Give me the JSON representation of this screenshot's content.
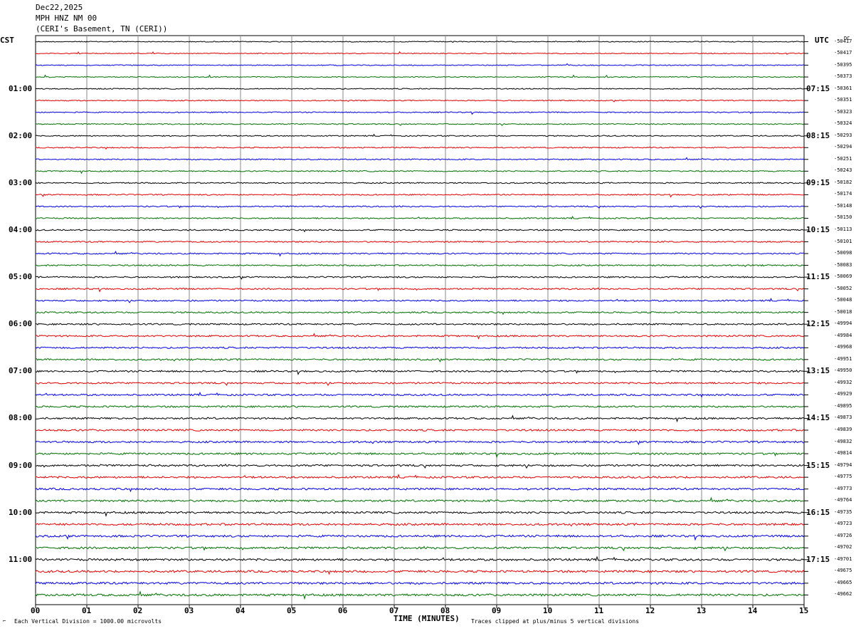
{
  "header": {
    "date": "Dec22,2025",
    "station": "MPH HNZ NM 00",
    "location": "(CERI's Basement, TN (CERI))"
  },
  "left_axis_label": "CST",
  "right_axis_label": "UTC",
  "dc_label": "DC",
  "chart_data": {
    "type": "seismogram",
    "xlabel": "TIME (MINUTES)",
    "x_ticks": [
      "00",
      "01",
      "02",
      "03",
      "04",
      "05",
      "06",
      "07",
      "08",
      "09",
      "10",
      "11",
      "12",
      "13",
      "14",
      "15"
    ],
    "xlim": [
      0,
      15
    ],
    "trace_colors": [
      "#000000",
      "#e00000",
      "#0000e0",
      "#007000"
    ],
    "num_traces": 48,
    "left_time_labels": [
      "01:00",
      "02:00",
      "03:00",
      "04:00",
      "05:00",
      "06:00",
      "07:00",
      "08:00",
      "09:00",
      "10:00",
      "11:00"
    ],
    "right_time_labels": [
      "07:15",
      "08:15",
      "09:15",
      "10:15",
      "11:15",
      "12:15",
      "13:15",
      "14:15",
      "15:15",
      "16:15",
      "17:15"
    ],
    "dc_offsets": [
      "-50417",
      "-50417",
      "-50395",
      "-50373",
      "-50361",
      "-50351",
      "-50323",
      "-50324",
      "-50293",
      "-50294",
      "-50251",
      "-50243",
      "-50182",
      "-50174",
      "-50148",
      "-50150",
      "-50113",
      "-50101",
      "-50098",
      "-50083",
      "-50069",
      "-50052",
      "-50048",
      "-50018",
      "-49994",
      "-49984",
      "-49968",
      "-49951",
      "-49950",
      "-49932",
      "-49929",
      "-49895",
      "-49873",
      "-49839",
      "-49832",
      "-49814",
      "-49794",
      "-49775",
      "-49773",
      "-49764",
      "-49735",
      "-49723",
      "-49726",
      "-49702",
      "-49701",
      "-49675",
      "-49665",
      "-49662"
    ]
  },
  "footer": {
    "scale_note": "Each Vertical Division = 1000.00 microvolts",
    "clip_note": "Traces clipped at plus/minus 5 vertical divisions"
  }
}
